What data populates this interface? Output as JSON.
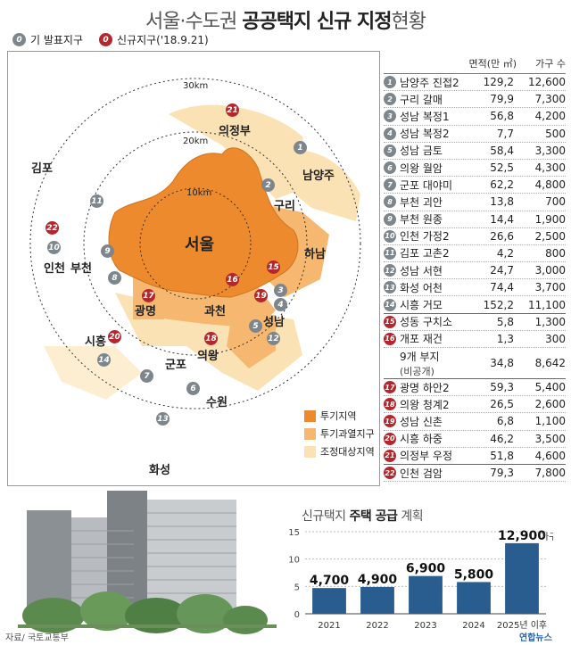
{
  "title": {
    "prefix": "서울·수도권 ",
    "bold": "공공택지 신규 지정",
    "suffix": "현황"
  },
  "legend_top": {
    "existing": {
      "num": "0",
      "label": "기 발표지구"
    },
    "new": {
      "num": "0",
      "label": "신규지구('18.9.21)"
    }
  },
  "table": {
    "header_area": "면적(만 ㎡)",
    "header_households": "가구 수",
    "rows": [
      {
        "num": "1",
        "type": "existing",
        "name": "남양주 진접2",
        "area": "129,2",
        "households": "12,600"
      },
      {
        "num": "2",
        "type": "existing",
        "name": "구리 갈매",
        "area": "79,9",
        "households": "7,300"
      },
      {
        "num": "3",
        "type": "existing",
        "name": "성남 복정1",
        "area": "56,8",
        "households": "4,200"
      },
      {
        "num": "4",
        "type": "existing",
        "name": "성남 복정2",
        "area": "7,7",
        "households": "500"
      },
      {
        "num": "5",
        "type": "existing",
        "name": "성남 금토",
        "area": "58,4",
        "households": "3,300"
      },
      {
        "num": "6",
        "type": "existing",
        "name": "의왕 월암",
        "area": "52,5",
        "households": "4,300"
      },
      {
        "num": "7",
        "type": "existing",
        "name": "군포 대야미",
        "area": "62,2",
        "households": "4,800"
      },
      {
        "num": "8",
        "type": "existing",
        "name": "부천 괴안",
        "area": "13,8",
        "households": "700"
      },
      {
        "num": "9",
        "type": "existing",
        "name": "부천 원종",
        "area": "14,4",
        "households": "1,900"
      },
      {
        "num": "10",
        "type": "existing",
        "name": "인천 가정2",
        "area": "26,6",
        "households": "2,500"
      },
      {
        "num": "11",
        "type": "existing",
        "name": "김포 고촌2",
        "area": "4,2",
        "households": "800"
      },
      {
        "num": "12",
        "type": "existing",
        "name": "성남 서현",
        "area": "24,7",
        "households": "3,000"
      },
      {
        "num": "13",
        "type": "existing",
        "name": "화성 어천",
        "area": "74,4",
        "households": "3,700"
      },
      {
        "num": "14",
        "type": "existing",
        "name": "시흥 거모",
        "area": "152,2",
        "households": "11,100"
      },
      {
        "num": "15",
        "type": "new",
        "name": "성동 구치소",
        "area": "5,8",
        "households": "1,300"
      },
      {
        "num": "16",
        "type": "new",
        "name": "개포 재건",
        "area": "1,3",
        "households": "300"
      },
      {
        "num": "",
        "type": "none",
        "name": "9개 부지",
        "sub": "(비공개)",
        "area": "34,8",
        "households": "8,642"
      },
      {
        "num": "17",
        "type": "new",
        "name": "광명 하안2",
        "area": "59,3",
        "households": "5,400"
      },
      {
        "num": "18",
        "type": "new",
        "name": "의왕 청계2",
        "area": "26,5",
        "households": "2,600"
      },
      {
        "num": "19",
        "type": "new",
        "name": "성남 신촌",
        "area": "6,8",
        "households": "1,100"
      },
      {
        "num": "20",
        "type": "new",
        "name": "시흥 하중",
        "area": "46,2",
        "households": "3,500"
      },
      {
        "num": "21",
        "type": "new",
        "name": "의정부 우정",
        "area": "51,8",
        "households": "4,600"
      },
      {
        "num": "22",
        "type": "new",
        "name": "인천 검암",
        "area": "79,3",
        "households": "7,800"
      }
    ]
  },
  "map": {
    "ring_labels": [
      "30km",
      "20km",
      "10km"
    ],
    "place_labels": {
      "seoul": "서울",
      "gimpo": "김포",
      "incheon": "인천",
      "bucheon": "부천",
      "gwangmyeong": "광명",
      "siheung": "시흥",
      "gwacheon": "과천",
      "gunpo": "군포",
      "uiwang": "의왕",
      "suwon": "수원",
      "hwaseong": "화성",
      "seongnam": "성남",
      "hanam": "하남",
      "guri": "구리",
      "namyangju": "남양주",
      "uijeongbu": "의정부"
    },
    "legend": [
      {
        "label": "투기지역",
        "color": "#ee8a2e"
      },
      {
        "label": "투기과열지구",
        "color": "#f6b870"
      },
      {
        "label": "조정대상지역",
        "color": "#fbe2b4"
      }
    ]
  },
  "bottom": {
    "title_prefix": "신규택지 ",
    "title_bold": "주택 공급",
    "title_suffix": " 계획",
    "unit": "가구",
    "source": "자료/ 국토교통부",
    "logo": "연합뉴스"
  },
  "chart_data": {
    "type": "bar",
    "title": "신규택지 주택 공급 계획",
    "categories": [
      "2021",
      "2022",
      "2023",
      "2024",
      "2025년 이후"
    ],
    "values": [
      4700,
      4900,
      6900,
      5800,
      12900
    ],
    "value_labels": [
      "4,700",
      "4,900",
      "6,900",
      "5,800",
      "12,900"
    ],
    "ylim": [
      0,
      15000
    ],
    "y_ticks": [
      "0",
      "5",
      "10",
      "15"
    ],
    "bar_color": "#2a5d8f"
  }
}
